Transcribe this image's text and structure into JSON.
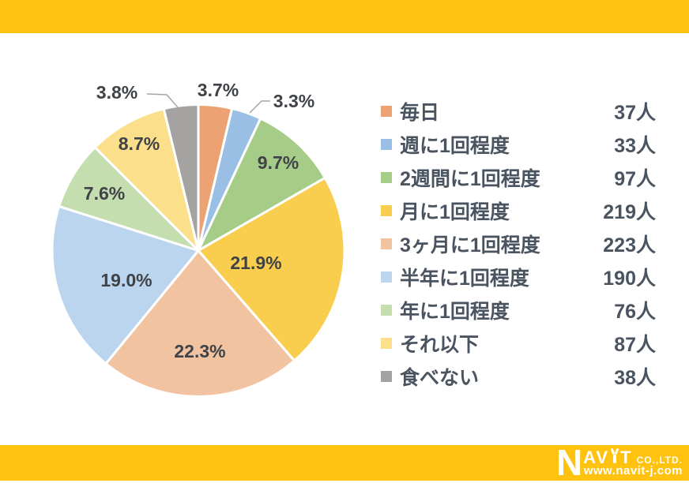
{
  "page": {
    "accent_color": "#FFC20E",
    "background": "#FFFFFF"
  },
  "chart_data": {
    "type": "pie",
    "title": "",
    "legend_position": "right",
    "start_angle_deg": 0,
    "direction": "clockwise",
    "unit_suffix": "人",
    "label_color": "#3F4347",
    "leader_line_color": "#A6A6A6",
    "slice_border_color": "#FFFFFF",
    "slices": [
      {
        "label": "毎日",
        "count": 37,
        "count_label": "37人",
        "percent": 3.7,
        "percent_label": "3.7%",
        "color": "#EDA273"
      },
      {
        "label": "週に1回程度",
        "count": 33,
        "count_label": "33人",
        "percent": 3.3,
        "percent_label": "3.3%",
        "color": "#9ABFE4"
      },
      {
        "label": "2週間に1回程度",
        "count": 97,
        "count_label": "97人",
        "percent": 9.7,
        "percent_label": "9.7%",
        "color": "#A5CD88"
      },
      {
        "label": "月に1回程度",
        "count": 219,
        "count_label": "219人",
        "percent": 21.9,
        "percent_label": "21.9%",
        "color": "#F9CD4E"
      },
      {
        "label": "3ヶ月に1回程度",
        "count": 223,
        "count_label": "223人",
        "percent": 22.3,
        "percent_label": "22.3%",
        "color": "#F2C3A1"
      },
      {
        "label": "半年に1回程度",
        "count": 190,
        "count_label": "190人",
        "percent": 19.0,
        "percent_label": "19.0%",
        "color": "#BCD5EE"
      },
      {
        "label": "年に1回程度",
        "count": 76,
        "count_label": "76人",
        "percent": 7.6,
        "percent_label": "7.6%",
        "color": "#C5DEAF"
      },
      {
        "label": "それ以下",
        "count": 87,
        "count_label": "87人",
        "percent": 8.7,
        "percent_label": "8.7%",
        "color": "#FBDF8B"
      },
      {
        "label": "食べない",
        "count": 38,
        "count_label": "38人",
        "percent": 3.8,
        "percent_label": "3.8%",
        "color": "#A5A3A2"
      }
    ]
  },
  "logo": {
    "n": "N",
    "av": "AV",
    "t": "T",
    "co": "CO.,LTD.",
    "site": "www.navit-j.com"
  }
}
